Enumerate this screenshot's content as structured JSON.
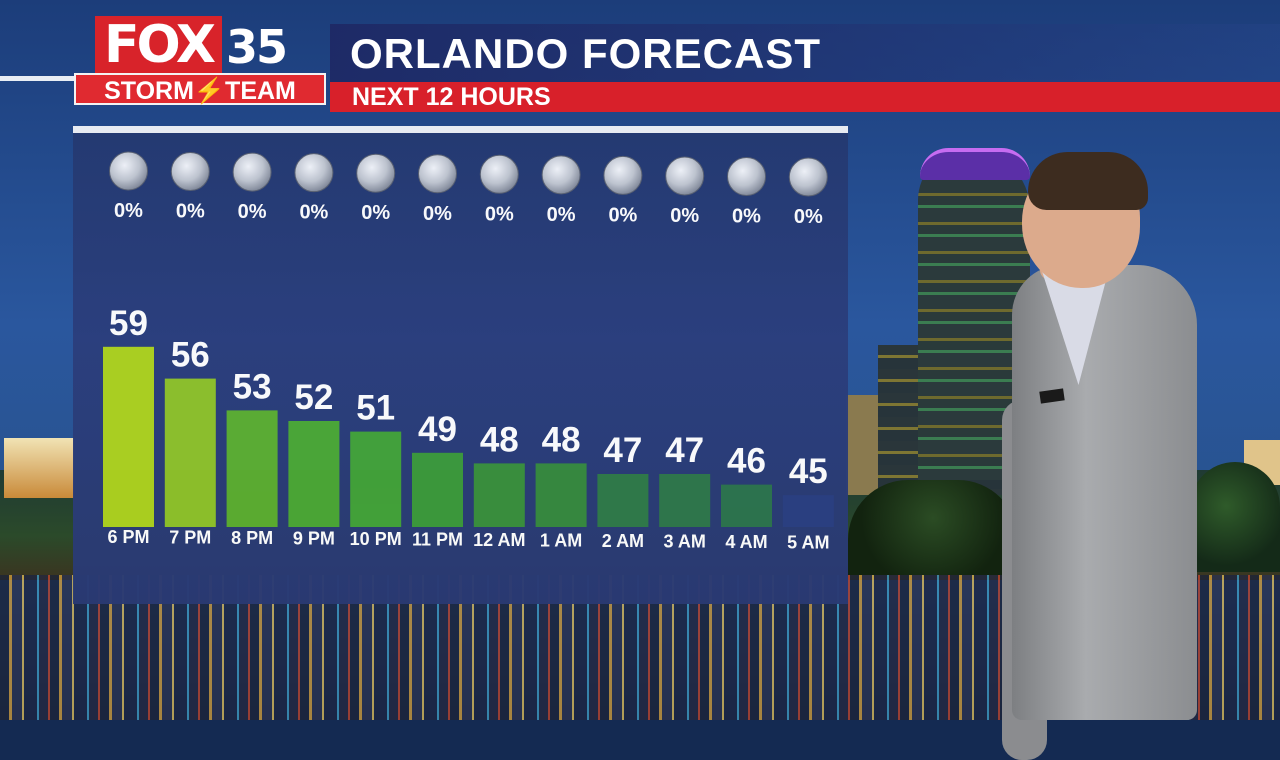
{
  "header": {
    "logo_fox": "FOX",
    "logo_number": "35",
    "logo_storm_team": "STORM⚡TEAM",
    "title": "ORLANDO FORECAST",
    "subtitle": "NEXT 12 HOURS"
  },
  "colors": {
    "brand_red": "#d8232a",
    "panel_bg": "#2a3c78",
    "bar_colors": [
      "#aed21f",
      "#8fc22a",
      "#5cae31",
      "#4ca836",
      "#43a33a",
      "#3c9a3c",
      "#3a903e",
      "#378a40",
      "#307a4a",
      "#2f774c",
      "#2d744f",
      "#2b3f83"
    ]
  },
  "chart_data": {
    "type": "bar",
    "title": "ORLANDO FORECAST",
    "subtitle": "NEXT 12 HOURS",
    "categories": [
      "6 PM",
      "7 PM",
      "8 PM",
      "9 PM",
      "10 PM",
      "11 PM",
      "12 AM",
      "1 AM",
      "2 AM",
      "3 AM",
      "4 AM",
      "5 AM"
    ],
    "series": [
      {
        "values": [
          59,
          56,
          53,
          52,
          51,
          49,
          48,
          48,
          47,
          47,
          46,
          45
        ]
      }
    ],
    "rain_chance": [
      "0%",
      "0%",
      "0%",
      "0%",
      "0%",
      "0%",
      "0%",
      "0%",
      "0%",
      "0%",
      "0%",
      "0%"
    ],
    "condition_icon": "clear-night-moon-icon",
    "xlabel": "",
    "ylabel": "",
    "grid": false,
    "legend": "none"
  }
}
